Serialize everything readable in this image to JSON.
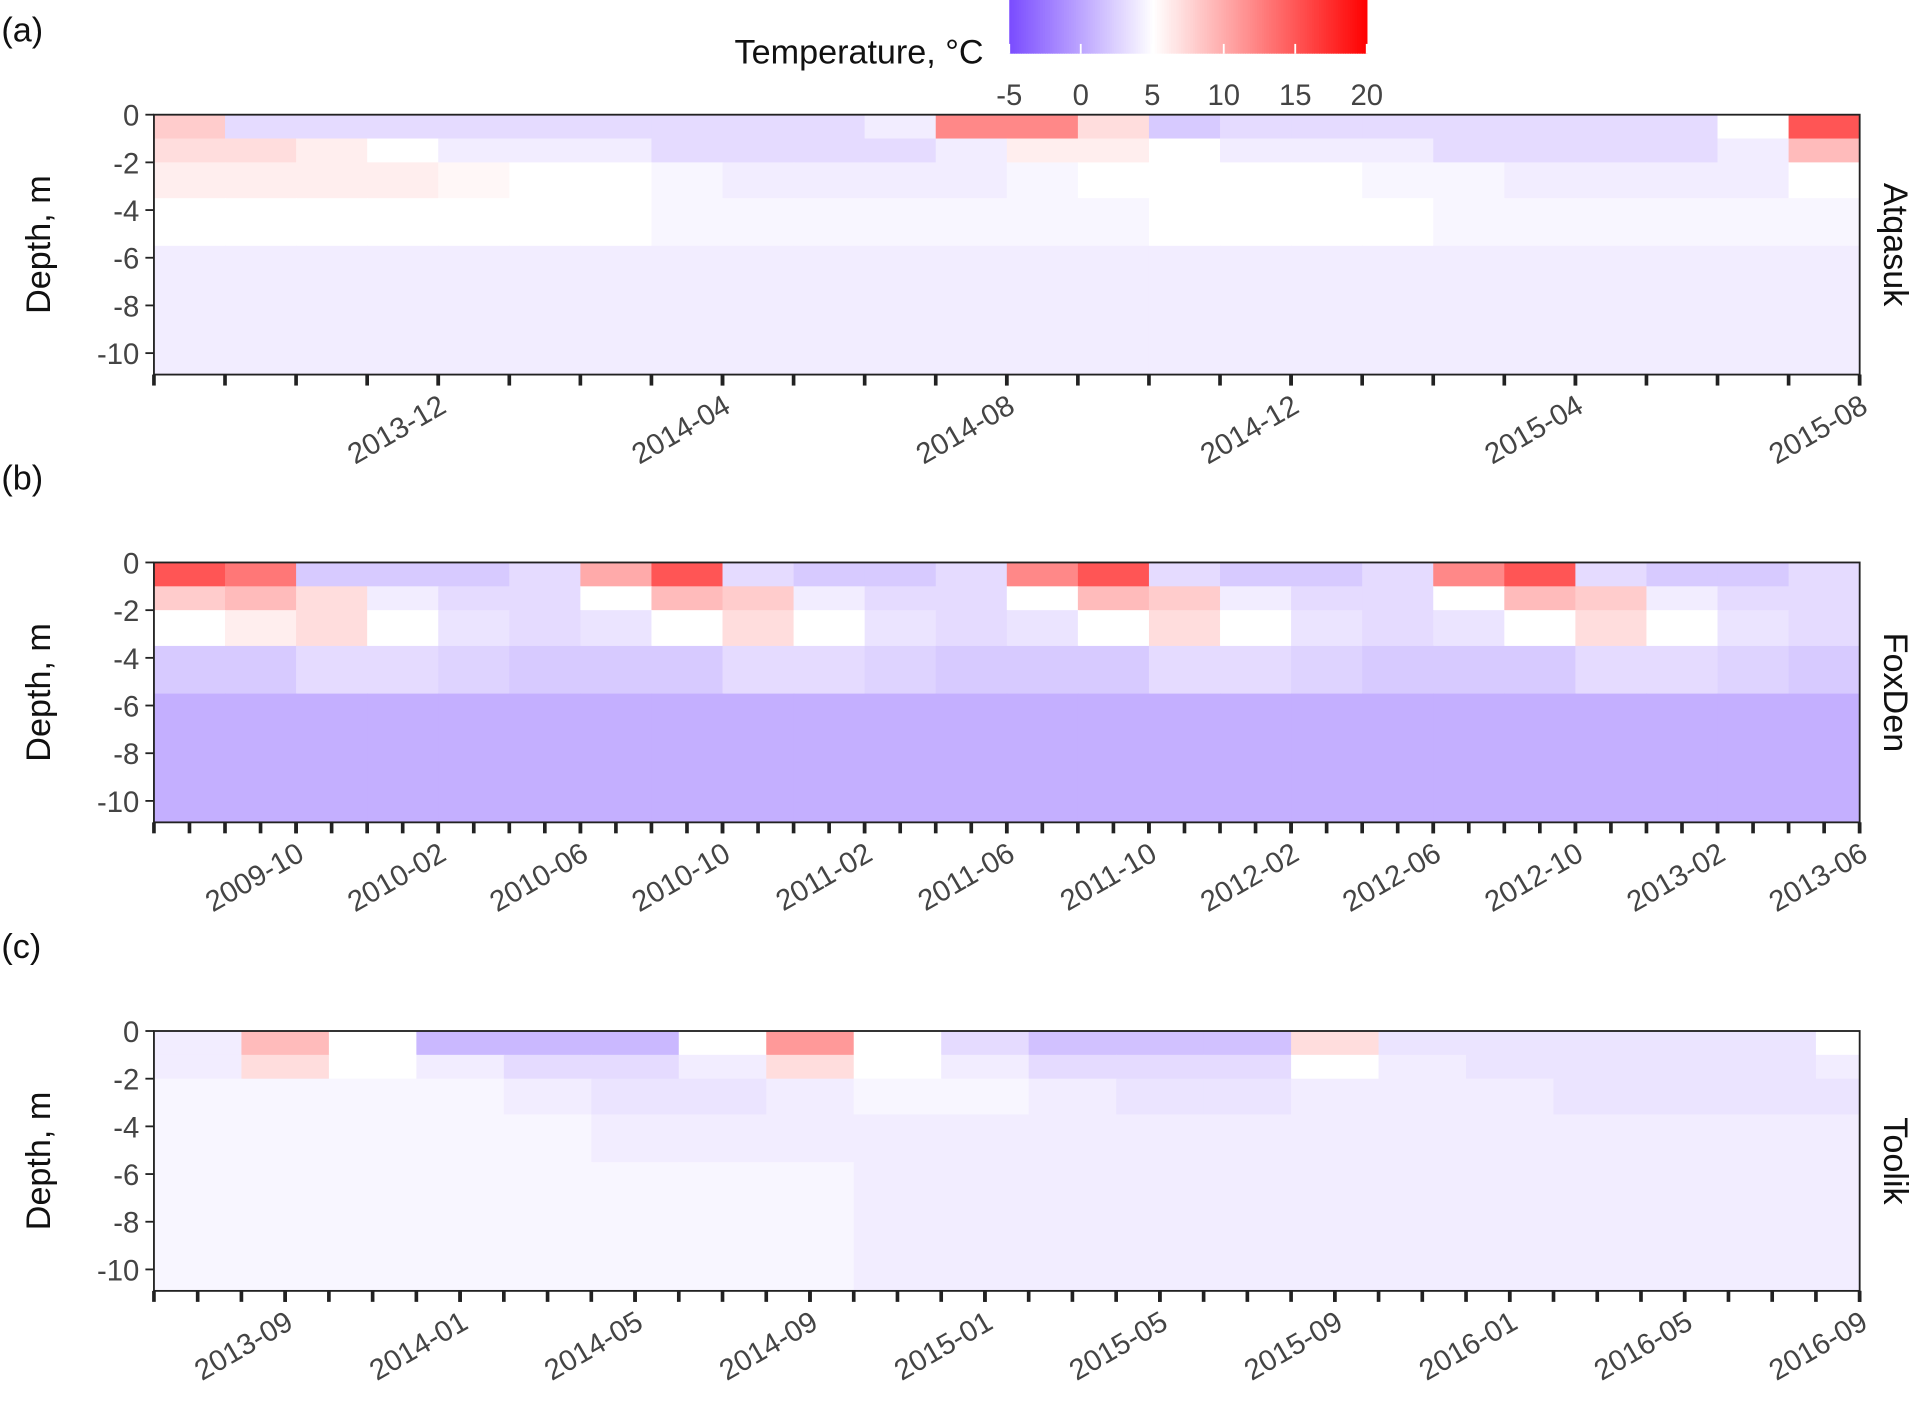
{
  "colorbar": {
    "title": "Temperature, °C",
    "clim": [
      -5,
      20
    ],
    "ticks": [
      -5,
      0,
      5,
      10,
      15,
      20
    ],
    "colors": {
      "low": "#7b4dff",
      "mid": "#ffffff",
      "high": "#ff0000"
    },
    "midpoint": 5
  },
  "chart_data": [
    {
      "type": "heatmap",
      "panel_label": "(a)",
      "facet": "Atqasuk",
      "y_label": "Depth, m",
      "xlim": [
        "2013-08",
        "2015-08"
      ],
      "ylim": [
        -10.9,
        0
      ],
      "yticks": [
        0,
        -2,
        -4,
        -6,
        -8,
        -10
      ],
      "xticks": [
        "2013-12",
        "2014-04",
        "2014-08",
        "2014-12",
        "2015-04",
        "2015-08"
      ],
      "xbins": [
        "2013-08",
        "2013-09",
        "2013-10",
        "2013-11",
        "2013-12",
        "2014-01",
        "2014-02",
        "2014-03",
        "2014-04",
        "2014-05",
        "2014-06",
        "2014-07",
        "2014-08",
        "2014-09",
        "2014-10",
        "2014-11",
        "2014-12",
        "2015-01",
        "2015-02",
        "2015-03",
        "2015-04",
        "2015-05",
        "2015-06",
        "2015-07",
        "2015-08"
      ],
      "ybins": [
        0,
        -1,
        -2,
        -3.5,
        -5.5,
        -10.9
      ],
      "z": [
        [
          8,
          3,
          3,
          3,
          3,
          3,
          3,
          3,
          3,
          3,
          4,
          12,
          12,
          7,
          2,
          3,
          3,
          3,
          3,
          3,
          3,
          3,
          5,
          15
        ],
        [
          7,
          7,
          6,
          5,
          4,
          4,
          4,
          3,
          3,
          3,
          3,
          4,
          6,
          6,
          5,
          4,
          4,
          4,
          3,
          3,
          3,
          3,
          4,
          9
        ],
        [
          6,
          6,
          6,
          6,
          5.5,
          5,
          5,
          4.5,
          4,
          4,
          4,
          4,
          4.5,
          5,
          5,
          5,
          5,
          4.5,
          4.5,
          4,
          4,
          4,
          4,
          5
        ],
        [
          5,
          5,
          5,
          5,
          5,
          5,
          5,
          4.5,
          4.5,
          4.5,
          4.5,
          4.5,
          4.5,
          4.5,
          5,
          5,
          5,
          5,
          4.5,
          4.5,
          4.5,
          4.5,
          4.5,
          4.5
        ],
        [
          4,
          4,
          4,
          4,
          4,
          4,
          4,
          4,
          4,
          4,
          4,
          4,
          4,
          4,
          4,
          4,
          4,
          4,
          4,
          4,
          4,
          4,
          4,
          4
        ]
      ]
    },
    {
      "type": "heatmap",
      "panel_label": "(b)",
      "facet": "FoxDen",
      "y_label": "Depth, m",
      "xlim": [
        "2009-06",
        "2013-06"
      ],
      "ylim": [
        -10.9,
        0
      ],
      "yticks": [
        0,
        -2,
        -4,
        -6,
        -8,
        -10
      ],
      "xticks": [
        "2009-10",
        "2010-02",
        "2010-06",
        "2010-10",
        "2011-02",
        "2011-06",
        "2011-10",
        "2012-02",
        "2012-06",
        "2012-10",
        "2013-02",
        "2013-06"
      ],
      "xbins": [
        "2009-06",
        "2009-08",
        "2009-10",
        "2009-12",
        "2010-02",
        "2010-04",
        "2010-06",
        "2010-08",
        "2010-10",
        "2010-12",
        "2011-02",
        "2011-04",
        "2011-06",
        "2011-08",
        "2011-10",
        "2011-12",
        "2012-02",
        "2012-04",
        "2012-06",
        "2012-08",
        "2012-10",
        "2012-12",
        "2013-02",
        "2013-04",
        "2013-06"
      ],
      "ybins": [
        0,
        -1,
        -2,
        -3.5,
        -5.5,
        -10.9
      ],
      "z": [
        [
          15,
          13,
          2,
          2,
          2,
          3,
          10,
          15,
          3,
          2,
          2,
          3,
          12,
          15,
          3,
          2,
          2,
          3,
          12,
          15,
          3,
          2,
          2,
          3
        ],
        [
          8,
          9,
          7,
          4,
          3,
          3,
          5,
          9,
          8,
          4,
          3,
          3,
          5,
          9,
          8,
          4,
          3,
          3,
          5,
          9,
          8,
          4,
          3,
          3
        ],
        [
          5,
          6,
          7,
          5,
          3.5,
          3,
          3.5,
          5,
          7,
          5,
          3.5,
          3,
          3.5,
          5,
          7,
          5,
          3.5,
          3,
          3.5,
          5,
          7,
          5,
          3.5,
          3
        ],
        [
          2,
          2,
          3,
          3,
          2.5,
          2,
          2,
          2,
          3,
          3,
          2.5,
          2,
          2,
          2,
          3,
          3,
          2.5,
          2,
          2,
          2,
          3,
          3,
          2.5,
          2
        ],
        [
          0.5,
          0.5,
          0.5,
          0.5,
          0.5,
          0.5,
          0.5,
          0.5,
          0.5,
          0.5,
          0.5,
          0.5,
          0.5,
          0.5,
          0.5,
          0.5,
          0.5,
          0.5,
          0.5,
          0.5,
          0.5,
          0.5,
          0.5,
          0.5
        ]
      ]
    },
    {
      "type": "heatmap",
      "panel_label": "(c)",
      "facet": "Toolik",
      "y_label": "Depth, m",
      "xlim": [
        "2013-06",
        "2016-09"
      ],
      "ylim": [
        -10.9,
        0
      ],
      "yticks": [
        0,
        -2,
        -4,
        -6,
        -8,
        -10
      ],
      "xticks": [
        "2013-09",
        "2014-01",
        "2014-05",
        "2014-09",
        "2015-01",
        "2015-05",
        "2015-09",
        "2016-01",
        "2016-05",
        "2016-09"
      ],
      "xbins": [
        "2013-06",
        "2013-08",
        "2013-10",
        "2013-12",
        "2014-02",
        "2014-04",
        "2014-06",
        "2014-08",
        "2014-10",
        "2014-12",
        "2015-02",
        "2015-04",
        "2015-06",
        "2015-08",
        "2015-10",
        "2015-12",
        "2016-02",
        "2016-04",
        "2016-06",
        "2016-08",
        "2016-09"
      ],
      "ybins": [
        0,
        -1,
        -2,
        -3.5,
        -5.5,
        -10.9
      ],
      "z": [
        [
          4,
          9,
          5,
          1,
          1,
          1,
          5,
          11,
          5,
          3,
          1.5,
          1.5,
          1.5,
          7,
          3.5,
          3.5,
          3.5,
          3.5,
          3.5,
          5
        ],
        [
          4,
          7,
          5,
          4,
          3,
          3,
          4,
          7,
          5,
          4,
          3,
          3,
          3,
          5,
          4,
          3.5,
          3.5,
          3.5,
          3.5,
          4
        ],
        [
          4.5,
          4.5,
          4.5,
          4.5,
          4,
          3.5,
          3.5,
          4,
          4.5,
          4.5,
          4,
          3.5,
          3.5,
          4,
          4,
          4,
          3.5,
          3.5,
          3.5,
          3.5
        ],
        [
          4.5,
          4.5,
          4.5,
          4.5,
          4.5,
          4,
          4,
          4,
          4,
          4,
          4,
          4,
          4,
          4,
          4,
          4,
          4,
          4,
          4,
          4
        ],
        [
          4.5,
          4.5,
          4.5,
          4.5,
          4.5,
          4.5,
          4.5,
          4.5,
          4,
          4,
          4,
          4,
          4,
          4,
          4,
          4,
          4,
          4,
          4,
          4
        ]
      ]
    }
  ]
}
